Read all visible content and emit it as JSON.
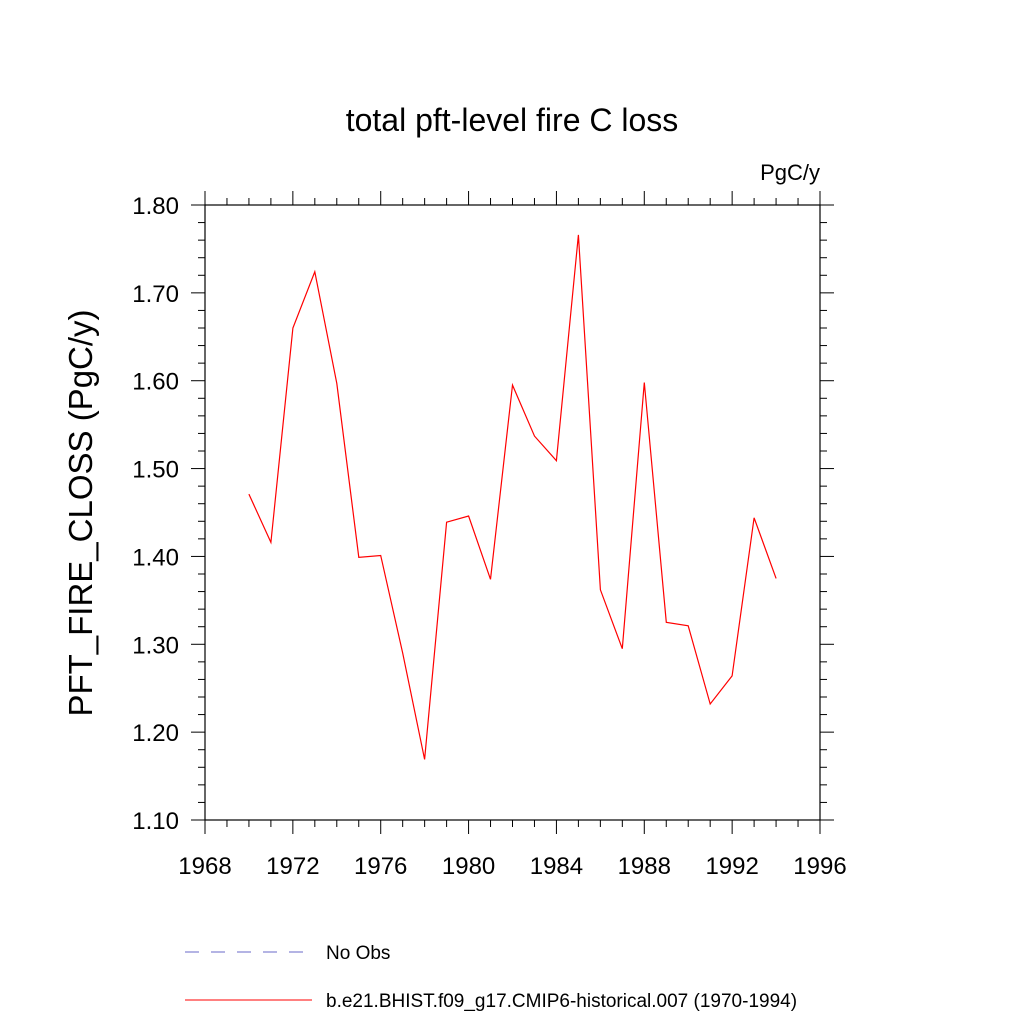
{
  "chart_data": {
    "type": "line",
    "title": "total pft-level fire C loss",
    "units": "PgC/y",
    "xlabel": "",
    "ylabel": "PFT_FIRE_CLOSS  (PgC/y)",
    "xlim": [
      1968,
      1996
    ],
    "ylim": [
      1.1,
      1.8
    ],
    "x_ticks": [
      "1968",
      "1972",
      "1976",
      "1980",
      "1984",
      "1988",
      "1992",
      "1996"
    ],
    "y_ticks": [
      "1.10",
      "1.20",
      "1.30",
      "1.40",
      "1.50",
      "1.60",
      "1.70",
      "1.80"
    ],
    "grid": false,
    "legend_position": "bottom",
    "series": [
      {
        "name": "b.e21.BHIST.f09_g17.CMIP6-historical.007 (1970-1994)",
        "color": "#ff0000",
        "style": "solid",
        "x": [
          1970,
          1971,
          1972,
          1973,
          1974,
          1975,
          1976,
          1977,
          1978,
          1979,
          1980,
          1981,
          1982,
          1983,
          1984,
          1985,
          1986,
          1987,
          1988,
          1989,
          1990,
          1991,
          1992,
          1993,
          1994
        ],
        "y": [
          1.471,
          1.416,
          1.66,
          1.724,
          1.597,
          1.399,
          1.401,
          1.29,
          1.169,
          1.439,
          1.446,
          1.374,
          1.595,
          1.537,
          1.509,
          1.766,
          1.362,
          1.295,
          1.598,
          1.325,
          1.321,
          1.232,
          1.264,
          1.444,
          1.375
        ]
      }
    ],
    "legend": [
      {
        "label": "No Obs",
        "color": "#6a6ac8",
        "style": "dashed"
      },
      {
        "label": "b.e21.BHIST.f09_g17.CMIP6-historical.007 (1970-1994)",
        "color": "#ff0000",
        "style": "solid"
      }
    ]
  }
}
